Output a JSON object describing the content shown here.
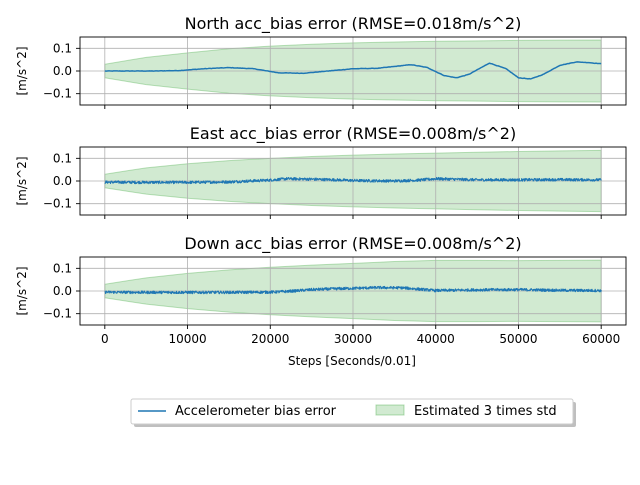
{
  "figure": {
    "xlabel": "Steps [Seconds/0.01]",
    "legend": {
      "placement": "bottom-center",
      "entries": [
        {
          "label": "Accelerometer bias error",
          "type": "line",
          "color": "#1f77b4"
        },
        {
          "label": "Estimated 3 times std",
          "type": "band",
          "color": "#2ca02c"
        }
      ]
    },
    "colors": {
      "line": "#1f77b4",
      "band_fill": "#2ca02c",
      "grid": "#b0b0b0"
    }
  },
  "chart_data": [
    {
      "type": "line",
      "title": "North acc_bias error (RMSE=0.018m/s^2)",
      "ylabel": "[m/s^2]",
      "xlim": [
        -3000,
        63000
      ],
      "ylim": [
        -0.15,
        0.15
      ],
      "xticks": [
        0,
        10000,
        20000,
        30000,
        40000,
        50000,
        60000
      ],
      "xtick_labels": [
        "",
        "",
        "",
        "",
        "",
        "",
        ""
      ],
      "yticks": [
        0.1,
        0.0,
        -0.1
      ],
      "ytick_labels": [
        "0.1",
        "0.0",
        "−0.1"
      ],
      "grid": true,
      "noise": 0.0008,
      "series": [
        {
          "kind": "line",
          "x": [
            0,
            3000,
            6000,
            9000,
            12000,
            15000,
            18000,
            21000,
            24000,
            27000,
            30000,
            33000,
            35000,
            37000,
            39000,
            41000,
            42500,
            44000,
            46500,
            48500,
            50000,
            51500,
            53000,
            55000,
            57000,
            58500,
            60000
          ],
          "y": [
            0.0,
            0.0,
            0.0,
            0.002,
            0.01,
            0.015,
            0.01,
            -0.008,
            -0.01,
            0.0,
            0.01,
            0.012,
            0.02,
            0.028,
            0.015,
            -0.02,
            -0.03,
            -0.015,
            0.035,
            0.01,
            -0.03,
            -0.035,
            -0.015,
            0.025,
            0.04,
            0.037,
            0.032
          ]
        },
        {
          "kind": "band",
          "x": [
            0,
            5000,
            10000,
            15000,
            20000,
            25000,
            30000,
            35000,
            40000,
            45000,
            50000,
            55000,
            60000
          ],
          "upper": [
            0.03,
            0.06,
            0.08,
            0.098,
            0.11,
            0.118,
            0.124,
            0.128,
            0.131,
            0.133,
            0.135,
            0.136,
            0.137
          ],
          "lower": [
            -0.03,
            -0.06,
            -0.08,
            -0.098,
            -0.11,
            -0.118,
            -0.124,
            -0.128,
            -0.131,
            -0.133,
            -0.135,
            -0.136,
            -0.137
          ]
        }
      ]
    },
    {
      "type": "line",
      "title": "East acc_bias error (RMSE=0.008m/s^2)",
      "ylabel": "[m/s^2]",
      "xlim": [
        -3000,
        63000
      ],
      "ylim": [
        -0.15,
        0.15
      ],
      "xticks": [
        0,
        10000,
        20000,
        30000,
        40000,
        50000,
        60000
      ],
      "xtick_labels": [
        "",
        "",
        "",
        "",
        "",
        "",
        ""
      ],
      "yticks": [
        0.1,
        0.0,
        -0.1
      ],
      "ytick_labels": [
        "0.1",
        "0.0",
        "−0.1"
      ],
      "grid": true,
      "noise": 0.006,
      "series": [
        {
          "kind": "line",
          "x": [
            0,
            5000,
            10000,
            15000,
            20000,
            22000,
            25000,
            28000,
            30000,
            35000,
            38000,
            40000,
            45000,
            50000,
            55000,
            60000
          ],
          "y": [
            -0.005,
            -0.006,
            -0.006,
            -0.004,
            0.004,
            0.01,
            0.008,
            0.005,
            0.002,
            0.0,
            0.004,
            0.01,
            0.005,
            0.005,
            0.006,
            0.005
          ]
        },
        {
          "kind": "band",
          "x": [
            0,
            5000,
            10000,
            15000,
            20000,
            25000,
            30000,
            35000,
            40000,
            45000,
            50000,
            55000,
            60000
          ],
          "upper": [
            0.03,
            0.058,
            0.076,
            0.09,
            0.1,
            0.108,
            0.114,
            0.119,
            0.123,
            0.127,
            0.13,
            0.133,
            0.135
          ],
          "lower": [
            -0.03,
            -0.058,
            -0.076,
            -0.09,
            -0.1,
            -0.108,
            -0.114,
            -0.119,
            -0.123,
            -0.127,
            -0.13,
            -0.133,
            -0.135
          ]
        }
      ]
    },
    {
      "type": "line",
      "title": "Down acc_bias error (RMSE=0.008m/s^2)",
      "ylabel": "[m/s^2]",
      "xlabel": "Steps [Seconds/0.01]",
      "xlim": [
        -3000,
        63000
      ],
      "ylim": [
        -0.15,
        0.15
      ],
      "xticks": [
        0,
        10000,
        20000,
        30000,
        40000,
        50000,
        60000
      ],
      "xtick_labels": [
        "0",
        "10000",
        "20000",
        "30000",
        "40000",
        "50000",
        "60000"
      ],
      "yticks": [
        0.1,
        0.0,
        -0.1
      ],
      "ytick_labels": [
        "0.1",
        "0.0",
        "−0.1"
      ],
      "grid": true,
      "noise": 0.006,
      "series": [
        {
          "kind": "line",
          "x": [
            0,
            5000,
            10000,
            15000,
            20000,
            22000,
            25000,
            28000,
            30000,
            33000,
            36000,
            38000,
            40000,
            45000,
            50000,
            55000,
            60000
          ],
          "y": [
            -0.005,
            -0.006,
            -0.006,
            -0.006,
            -0.005,
            -0.002,
            0.006,
            0.01,
            0.012,
            0.015,
            0.014,
            0.008,
            0.002,
            0.005,
            0.006,
            0.003,
            0.002
          ]
        },
        {
          "kind": "band",
          "x": [
            0,
            5000,
            10000,
            15000,
            20000,
            25000,
            30000,
            35000,
            40000,
            45000,
            50000,
            55000,
            60000
          ],
          "upper": [
            0.03,
            0.058,
            0.078,
            0.093,
            0.105,
            0.114,
            0.122,
            0.13,
            0.135,
            0.135,
            0.134,
            0.135,
            0.136
          ],
          "lower": [
            -0.03,
            -0.058,
            -0.078,
            -0.093,
            -0.105,
            -0.114,
            -0.122,
            -0.13,
            -0.135,
            -0.135,
            -0.134,
            -0.135,
            -0.136
          ]
        }
      ]
    }
  ]
}
